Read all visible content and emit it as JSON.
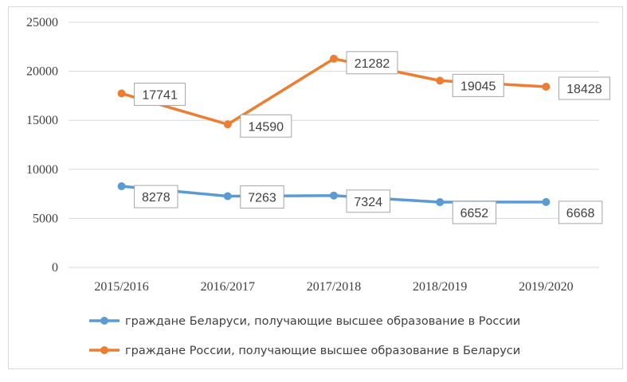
{
  "chart_data": {
    "type": "line",
    "categories": [
      "2015/2016",
      "2016/2017",
      "2017/2018",
      "2018/2019",
      "2019/2020"
    ],
    "ylim": [
      0,
      25000
    ],
    "yticks": [
      0,
      5000,
      10000,
      15000,
      20000,
      25000
    ],
    "grid": true,
    "legend_position": "bottom",
    "series": [
      {
        "name": "граждане Беларуси, получающие высшее образование в России",
        "color": "#5b9bd5",
        "values": [
          8278,
          7263,
          7324,
          6652,
          6668
        ]
      },
      {
        "name": "граждане России, получающие высшее образование в Беларуси",
        "color": "#ed7d31",
        "values": [
          17741,
          14590,
          21282,
          19045,
          18428
        ]
      }
    ]
  }
}
